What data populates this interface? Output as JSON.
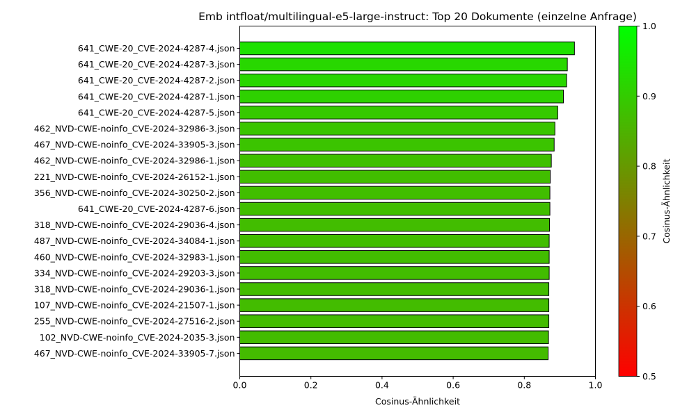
{
  "chart_data": {
    "type": "bar",
    "orientation": "horizontal",
    "title": "Emb intfloat/multilingual-e5-large-instruct: Top 20 Dokumente (einzelne Anfrage)",
    "xlabel": "Cosinus-Ähnlichkeit",
    "ylabel": "",
    "xlim": [
      0.0,
      1.0
    ],
    "xticks": [
      "0.0",
      "0.2",
      "0.4",
      "0.6",
      "0.8",
      "1.0"
    ],
    "categories": [
      "641_CWE-20_CVE-2024-4287-4.json",
      "641_CWE-20_CVE-2024-4287-3.json",
      "641_CWE-20_CVE-2024-4287-2.json",
      "641_CWE-20_CVE-2024-4287-1.json",
      "641_CWE-20_CVE-2024-4287-5.json",
      "462_NVD-CWE-noinfo_CVE-2024-32986-3.json",
      "467_NVD-CWE-noinfo_CVE-2024-33905-3.json",
      "462_NVD-CWE-noinfo_CVE-2024-32986-1.json",
      "221_NVD-CWE-noinfo_CVE-2024-26152-1.json",
      "356_NVD-CWE-noinfo_CVE-2024-30250-2.json",
      "641_CWE-20_CVE-2024-4287-6.json",
      "318_NVD-CWE-noinfo_CVE-2024-29036-4.json",
      "487_NVD-CWE-noinfo_CVE-2024-34084-1.json",
      "460_NVD-CWE-noinfo_CVE-2024-32983-1.json",
      "334_NVD-CWE-noinfo_CVE-2024-29203-3.json",
      "318_NVD-CWE-noinfo_CVE-2024-29036-1.json",
      "107_NVD-CWE-noinfo_CVE-2024-21507-1.json",
      "255_NVD-CWE-noinfo_CVE-2024-27516-2.json",
      "102_NVD-CWE-noinfo_CVE-2024-2035-3.json",
      "467_NVD-CWE-noinfo_CVE-2024-33905-7.json"
    ],
    "values": [
      0.941,
      0.921,
      0.919,
      0.91,
      0.894,
      0.886,
      0.884,
      0.876,
      0.873,
      0.872,
      0.872,
      0.871,
      0.87,
      0.87,
      0.87,
      0.869,
      0.869,
      0.869,
      0.868,
      0.867
    ],
    "colorbar": {
      "label": "Cosinus-Ähnlichkeit",
      "range": [
        0.5,
        1.0
      ],
      "ticks": [
        "0.5",
        "0.6",
        "0.7",
        "0.8",
        "0.9",
        "1.0"
      ],
      "color_low": "#ff0000",
      "color_high": "#00ff00"
    },
    "bar_edge_color": "#000000",
    "grid": false,
    "legend": "none"
  }
}
